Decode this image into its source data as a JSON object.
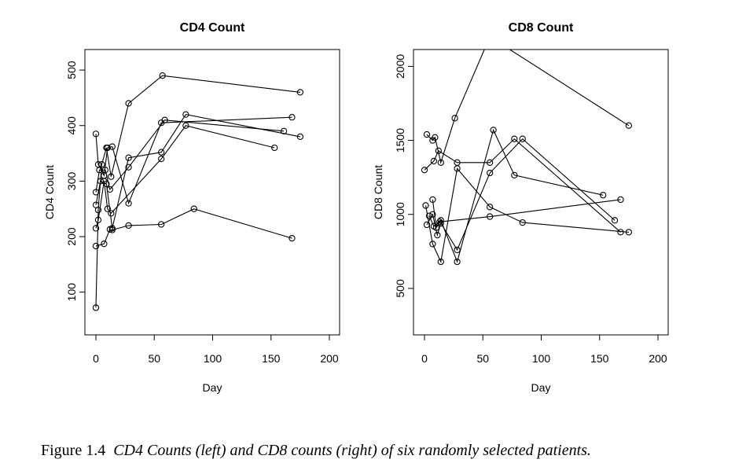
{
  "chart_data": [
    {
      "type": "line",
      "title": "CD4 Count",
      "xlabel": "Day",
      "ylabel": "CD4 Count",
      "xlim": [
        0,
        200
      ],
      "ylim": [
        40,
        520
      ],
      "xticks": [
        0,
        50,
        100,
        150,
        200
      ],
      "yticks": [
        100,
        200,
        300,
        400,
        500
      ],
      "series": [
        {
          "points": [
            [
              0,
              72
            ],
            [
              2,
              248
            ],
            [
              5,
              330
            ],
            [
              9,
              360
            ],
            [
              13,
              308
            ],
            [
              28,
              440
            ],
            [
              57,
              490
            ],
            [
              175,
              460
            ]
          ]
        },
        {
          "points": [
            [
              0,
              385
            ],
            [
              2,
              330
            ],
            [
              7,
              310
            ],
            [
              10,
              360
            ],
            [
              14,
              362
            ],
            [
              28,
              260
            ],
            [
              56,
              405
            ],
            [
              168,
              415
            ]
          ]
        },
        {
          "points": [
            [
              0,
              280
            ],
            [
              3,
              320
            ],
            [
              8,
              320
            ],
            [
              12,
              285
            ],
            [
              28,
              325
            ],
            [
              59,
              410
            ],
            [
              161,
              390
            ]
          ]
        },
        {
          "points": [
            [
              0,
              257
            ],
            [
              4,
              300
            ],
            [
              9,
              295
            ],
            [
              14,
              215
            ],
            [
              28,
              342
            ],
            [
              56,
              352
            ],
            [
              77,
              420
            ],
            [
              175,
              380
            ]
          ]
        },
        {
          "points": [
            [
              0,
              215
            ],
            [
              2,
              230
            ],
            [
              7,
              300
            ],
            [
              10,
              250
            ],
            [
              13,
              242
            ],
            [
              56,
              340
            ],
            [
              77,
              400
            ],
            [
              153,
              360
            ]
          ]
        },
        {
          "points": [
            [
              0,
              183
            ],
            [
              7,
              187
            ],
            [
              12,
              213
            ],
            [
              14,
              212
            ],
            [
              28,
              220
            ],
            [
              56,
              222
            ],
            [
              84,
              250
            ],
            [
              168,
              197
            ]
          ]
        }
      ]
    },
    {
      "type": "line",
      "title": "CD8 Count",
      "xlabel": "Day",
      "ylabel": "CD8 Count",
      "xlim": [
        0,
        200
      ],
      "ylim": [
        250,
        2050
      ],
      "xticks": [
        0,
        50,
        100,
        150,
        200
      ],
      "yticks": [
        500,
        1000,
        1500,
        2000
      ],
      "series": [
        {
          "points": [
            [
              2,
              1540
            ],
            [
              7,
              1500
            ],
            [
              9,
              1520
            ],
            [
              14,
              1350
            ],
            [
              26,
              1650
            ],
            [
              56,
              2200
            ],
            [
              175,
              1600
            ]
          ]
        },
        {
          "points": [
            [
              0,
              1300
            ],
            [
              8,
              1360
            ],
            [
              12,
              1430
            ],
            [
              28,
              1350
            ],
            [
              56,
              1350
            ],
            [
              77,
              1510
            ],
            [
              168,
              880
            ]
          ]
        },
        {
          "points": [
            [
              1,
              1060
            ],
            [
              7,
              800
            ],
            [
              14,
              680
            ],
            [
              28,
              1310
            ],
            [
              56,
              1050
            ],
            [
              84,
              945
            ],
            [
              175,
              880
            ]
          ]
        },
        {
          "points": [
            [
              2,
              930
            ],
            [
              7,
              1000
            ],
            [
              11,
              860
            ],
            [
              14,
              940
            ],
            [
              28,
              760
            ],
            [
              56,
              1280
            ],
            [
              84,
              1510
            ],
            [
              163,
              960
            ]
          ]
        },
        {
          "points": [
            [
              7,
              1100
            ],
            [
              10,
              910
            ],
            [
              14,
              960
            ],
            [
              28,
              680
            ],
            [
              59,
              1570
            ],
            [
              77,
              1265
            ],
            [
              153,
              1130
            ]
          ]
        },
        {
          "points": [
            [
              4,
              990
            ],
            [
              8,
              920
            ],
            [
              13,
              950
            ],
            [
              56,
              985
            ],
            [
              168,
              1100
            ]
          ]
        }
      ]
    }
  ],
  "caption": {
    "label": "Figure 1.4",
    "text": "CD4 Counts (left) and CD8 counts (right) of six randomly selected patients."
  }
}
